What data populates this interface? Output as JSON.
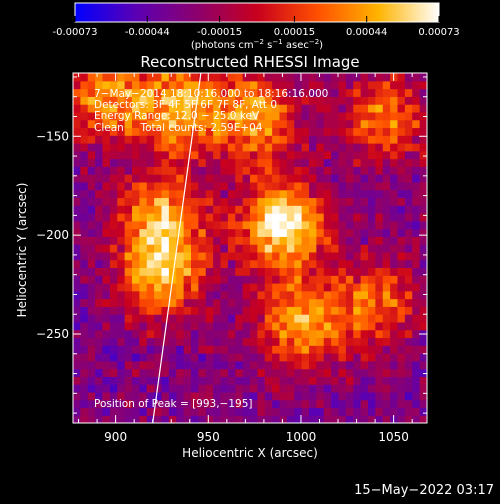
{
  "colorbar": {
    "tick_labels": [
      "-0.00073",
      "-0.00044",
      "-0.00015",
      "0.00015",
      "0.00044",
      "0.00073"
    ],
    "tick_values": [
      -0.00073,
      -0.00044,
      -0.00015,
      0.00015,
      0.00044,
      0.00073
    ],
    "range": [
      -0.00073,
      0.00073
    ],
    "units_prefix": "(photons cm",
    "units_exp1": "−2",
    "units_mid": " s",
    "units_exp2": "−1",
    "units_mid2": " asec",
    "units_exp3": "−2",
    "units_suffix": ")",
    "colors": [
      "#0000ff",
      "#5a00b4",
      "#8c006e",
      "#c8001e",
      "#ff5000",
      "#ffb400",
      "#ffffff"
    ]
  },
  "footer": {
    "timestamp": "15−May−2022 03:17"
  },
  "chart_data": {
    "type": "heatmap",
    "title": "Reconstructed RHESSI Image",
    "xlabel": "Heliocentric X (arcsec)",
    "ylabel": "Heliocentric Y (arcsec)",
    "xlim": [
      877,
      1068
    ],
    "ylim": [
      -295,
      -118
    ],
    "xticks": [
      900,
      950,
      1000,
      1050
    ],
    "xtick_labels": [
      "900",
      "950",
      "1000",
      "1050"
    ],
    "yticks": [
      -150,
      -200,
      -250
    ],
    "ytick_labels": [
      "−150",
      "−200",
      "−250"
    ],
    "annotations": [
      "7−May−2014 18:10:16.000 to 18:16:16.000",
      "Detectors: 3F 4F 5F 6F 7F 8F, Att 0",
      "Energy Range: 12.0 − 25.0 keV",
      "Clean     Total counts: 2.59E+04"
    ],
    "peak_label": "Position of Peak = [993,−195]",
    "peak": [
      993,
      -195
    ],
    "sources": [
      {
        "x": 990,
        "y": -195,
        "value": 0.00073
      },
      {
        "x": 925,
        "y": -220,
        "value": 0.0005
      },
      {
        "x": 925,
        "y": -190,
        "value": 0.00038
      },
      {
        "x": 935,
        "y": -135,
        "value": 0.0005
      },
      {
        "x": 975,
        "y": -140,
        "value": 0.00044
      },
      {
        "x": 1000,
        "y": -245,
        "value": 0.0004
      },
      {
        "x": 1045,
        "y": -140,
        "value": 0.00035
      },
      {
        "x": 1040,
        "y": -235,
        "value": 0.0003
      },
      {
        "x": 895,
        "y": -130,
        "value": 0.0004
      }
    ],
    "limb_line": [
      [
        920,
        -295
      ],
      [
        946,
        -118
      ]
    ]
  }
}
